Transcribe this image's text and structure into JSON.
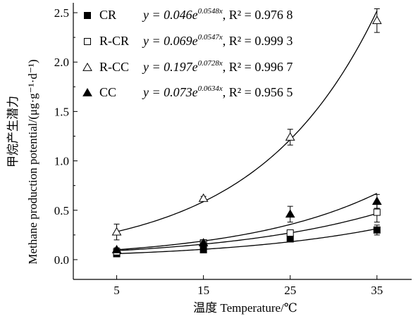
{
  "chart_data": {
    "type": "scatter",
    "xlabel": "温度 Temperature/℃",
    "ylabel_line1": "甲烷产生潜力",
    "ylabel_line2": "Methane production potential/(μg·g⁻¹·d⁻¹)",
    "xlim": [
      0,
      39
    ],
    "ylim": [
      -0.2,
      2.6
    ],
    "x_ticks": [
      "5",
      "15",
      "25",
      "35"
    ],
    "y_ticks": [
      "0.0",
      "0.5",
      "1.0",
      "1.5",
      "2.0",
      "2.5"
    ],
    "x": [
      5,
      15,
      25,
      35
    ],
    "grid": false,
    "legend_position": "top-left",
    "series": [
      {
        "name": "CR",
        "marker": "square-filled",
        "values": [
          0.06,
          0.1,
          0.21,
          0.3
        ],
        "errors": [
          0.02,
          0.02,
          0.02,
          0.05
        ],
        "fit": {
          "a": 0.046,
          "b": 0.0548
        },
        "equation": {
          "coef": "y = 0.046e",
          "exp": "0.0548x",
          "r2": ", R² = 0.976 8"
        }
      },
      {
        "name": "R-CR",
        "marker": "square-open",
        "values": [
          0.08,
          0.17,
          0.27,
          0.48
        ],
        "errors": [
          0.02,
          0.02,
          0.03,
          0.1
        ],
        "fit": {
          "a": 0.069,
          "b": 0.0547
        },
        "equation": {
          "coef": "y = 0.069e",
          "exp": "0.0547x",
          "r2": ", R² = 0.999 3"
        }
      },
      {
        "name": "R-CC",
        "marker": "triangle-open",
        "values": [
          0.28,
          0.62,
          1.24,
          2.42
        ],
        "errors": [
          0.08,
          0.02,
          0.08,
          0.12
        ],
        "fit": {
          "a": 0.197,
          "b": 0.0728
        },
        "equation": {
          "coef": "y = 0.197e",
          "exp": "0.0728x",
          "r2": ", R² = 0.996 7"
        }
      },
      {
        "name": "CC",
        "marker": "triangle-filled",
        "values": [
          0.1,
          0.17,
          0.46,
          0.59
        ],
        "errors": [
          0.02,
          0.02,
          0.08,
          0.07
        ],
        "fit": {
          "a": 0.073,
          "b": 0.0634
        },
        "equation": {
          "coef": "y = 0.073e",
          "exp": "0.0634x",
          "r2": ", R² = 0.956 5"
        }
      }
    ]
  }
}
